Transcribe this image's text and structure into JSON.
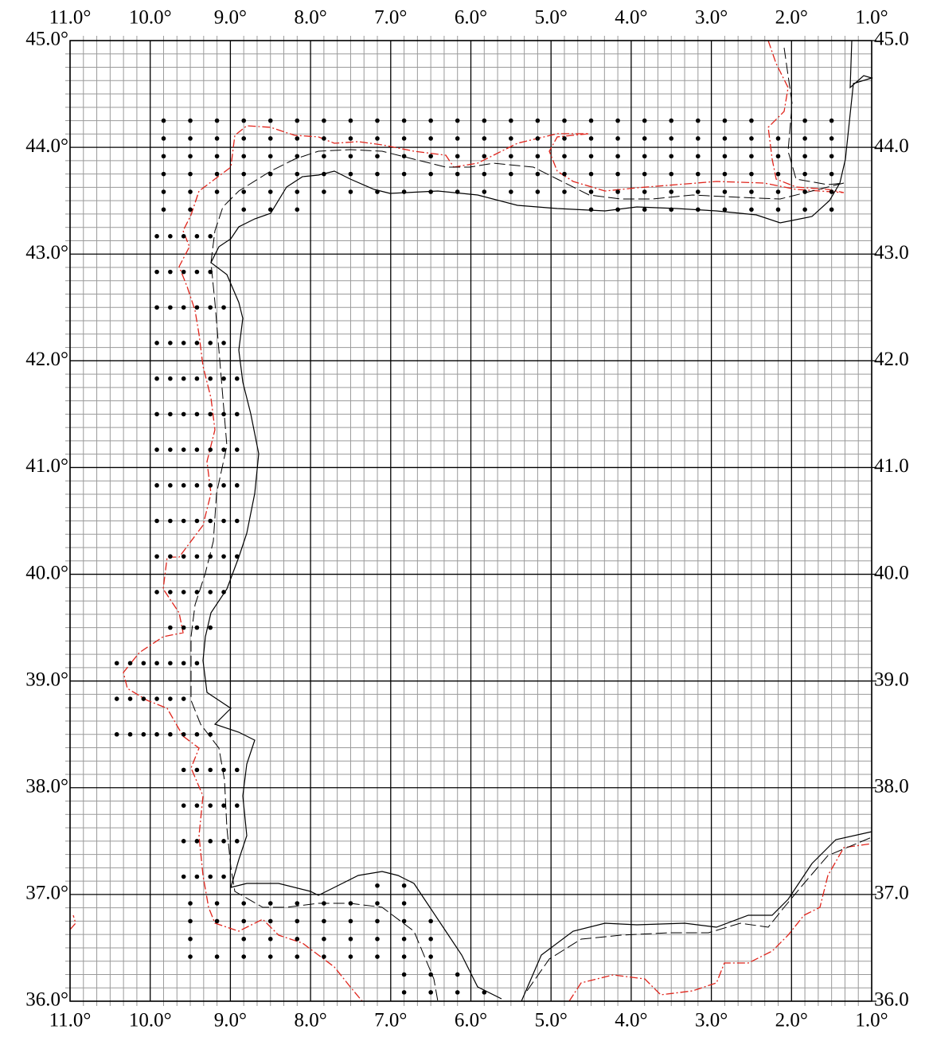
{
  "map": {
    "xlim": [
      11,
      1
    ],
    "ylim": [
      36,
      45
    ],
    "xticks": [
      {
        "value": 11,
        "label": "11.0°"
      },
      {
        "value": 10,
        "label": "10.0°"
      },
      {
        "value": 9,
        "label": "9.0°"
      },
      {
        "value": 8,
        "label": "8.0°"
      },
      {
        "value": 7,
        "label": "7.0°"
      },
      {
        "value": 6,
        "label": "6.0°"
      },
      {
        "value": 5,
        "label": "5.0°"
      },
      {
        "value": 4,
        "label": "4.0°"
      },
      {
        "value": 3,
        "label": "3.0°"
      },
      {
        "value": 2,
        "label": "2.0°"
      },
      {
        "value": 1,
        "label": "1.0°"
      }
    ],
    "yticks": [
      {
        "value": 45,
        "label": "45.0°"
      },
      {
        "value": 44,
        "label": "44.0°"
      },
      {
        "value": 43,
        "label": "43.0°"
      },
      {
        "value": 42,
        "label": "42.0°"
      },
      {
        "value": 41,
        "label": "41.0°"
      },
      {
        "value": 40,
        "label": "40.0°"
      },
      {
        "value": 39,
        "label": "39.0°"
      },
      {
        "value": 38,
        "label": "38.0°"
      },
      {
        "value": 37,
        "label": "37.0°"
      },
      {
        "value": 36,
        "label": "36.0°"
      }
    ],
    "y2ticks": [
      {
        "value": 45,
        "label": "45.0"
      },
      {
        "value": 44,
        "label": "44.0"
      },
      {
        "value": 43,
        "label": "43.0"
      },
      {
        "value": 42,
        "label": "42.0"
      },
      {
        "value": 41,
        "label": "41.0"
      },
      {
        "value": 40,
        "label": "40.0"
      },
      {
        "value": 39,
        "label": "39.0"
      },
      {
        "value": 38,
        "label": "38.0"
      },
      {
        "value": 37,
        "label": "37.0"
      },
      {
        "value": 36,
        "label": "36.0"
      }
    ],
    "minor_per_degree": {
      "lon": 6,
      "lat": 8
    },
    "stations": [
      {
        "lat": 44.25,
        "lon": [
          9.833,
          9.5,
          9.167,
          8.833,
          8.5,
          8.167,
          7.833,
          7.5,
          7.167,
          6.833,
          6.5,
          6.167,
          5.833,
          5.5,
          5.167,
          4.833,
          4.5,
          4.167,
          3.833,
          3.5,
          3.167,
          2.833,
          2.5,
          1.833,
          1.5
        ]
      },
      {
        "lat": 44.083,
        "lon": [
          9.833,
          9.5,
          9.167,
          8.833,
          8.5,
          8.167,
          7.833,
          7.5,
          7.167,
          6.833,
          6.5,
          6.167,
          5.833,
          5.5,
          5.167,
          4.833,
          4.5,
          4.167,
          3.833,
          3.5,
          3.167,
          2.833,
          2.5,
          2.167,
          1.833,
          1.5
        ]
      },
      {
        "lat": 43.917,
        "lon": [
          9.833,
          9.5,
          9.167,
          8.833,
          8.5,
          8.167,
          7.833,
          7.5,
          7.167,
          6.833,
          6.5,
          6.167,
          5.833,
          5.5,
          5.167,
          4.833,
          4.5,
          4.167,
          3.833,
          3.5,
          3.167,
          2.833,
          2.5,
          2.167,
          1.833,
          1.5
        ]
      },
      {
        "lat": 43.75,
        "lon": [
          9.833,
          9.5,
          9.167,
          8.833,
          8.5,
          8.167,
          7.833,
          7.5,
          7.167,
          6.833,
          6.5,
          6.167,
          5.833,
          5.5,
          5.167,
          4.833,
          4.5,
          4.167,
          3.833,
          3.5,
          3.167,
          2.833,
          2.5,
          2.167,
          1.833,
          1.5
        ]
      },
      {
        "lat": 43.583,
        "lon": [
          9.833,
          9.5,
          9.167,
          8.833,
          8.5,
          8.167,
          7.833,
          7.5,
          7.167,
          6.833,
          6.5,
          6.167,
          5.833,
          5.5,
          5.167,
          4.833,
          4.5,
          4.167,
          3.833,
          3.5,
          3.167,
          2.833,
          2.5,
          2.167,
          1.833,
          1.5
        ]
      },
      {
        "lat": 43.417,
        "lon": [
          9.833,
          9.5,
          8.833,
          8.5,
          8.167,
          4.5,
          4.167,
          3.833,
          3.5,
          3.167,
          2.833,
          2.5,
          2.167,
          1.833,
          1.5
        ]
      },
      {
        "lat": 43.167,
        "lon": [
          9.917,
          9.75,
          9.583,
          9.417,
          9.25
        ]
      },
      {
        "lat": 42.833,
        "lon": [
          9.917,
          9.75,
          9.583,
          9.417,
          9.25
        ]
      },
      {
        "lat": 42.5,
        "lon": [
          9.917,
          9.75,
          9.583,
          9.417,
          9.25,
          9.083
        ]
      },
      {
        "lat": 42.167,
        "lon": [
          9.917,
          9.75,
          9.583,
          9.417,
          9.25,
          9.083
        ]
      },
      {
        "lat": 41.833,
        "lon": [
          9.917,
          9.75,
          9.583,
          9.417,
          9.25,
          9.083,
          8.917
        ]
      },
      {
        "lat": 41.5,
        "lon": [
          9.917,
          9.75,
          9.583,
          9.417,
          9.25,
          9.083,
          8.917
        ]
      },
      {
        "lat": 41.167,
        "lon": [
          9.917,
          9.75,
          9.583,
          9.417,
          9.25,
          9.083,
          8.917
        ]
      },
      {
        "lat": 40.833,
        "lon": [
          9.917,
          9.75,
          9.583,
          9.417,
          9.25,
          9.083,
          8.917
        ]
      },
      {
        "lat": 40.5,
        "lon": [
          9.917,
          9.75,
          9.583,
          9.417,
          9.25,
          9.083,
          8.917
        ]
      },
      {
        "lat": 40.167,
        "lon": [
          9.917,
          9.75,
          9.583,
          9.417,
          9.25,
          9.083,
          8.917
        ]
      },
      {
        "lat": 39.833,
        "lon": [
          9.917,
          9.75,
          9.583,
          9.417,
          9.25,
          9.083
        ]
      },
      {
        "lat": 39.5,
        "lon": [
          9.75,
          9.583,
          9.417,
          9.25
        ]
      },
      {
        "lat": 39.167,
        "lon": [
          10.417,
          10.25,
          10.083,
          9.917,
          9.75,
          9.583,
          9.417
        ]
      },
      {
        "lat": 38.833,
        "lon": [
          10.417,
          10.25,
          10.083,
          9.917,
          9.75,
          9.583
        ]
      },
      {
        "lat": 38.5,
        "lon": [
          10.417,
          10.25,
          10.083,
          9.917,
          9.75,
          9.583,
          9.417,
          9.25
        ]
      },
      {
        "lat": 38.167,
        "lon": [
          9.583,
          9.417,
          9.25,
          9.083,
          8.917
        ]
      },
      {
        "lat": 37.833,
        "lon": [
          9.583,
          9.417,
          9.25,
          9.083,
          8.917
        ]
      },
      {
        "lat": 37.5,
        "lon": [
          9.583,
          9.417,
          9.25,
          9.083,
          8.917
        ]
      },
      {
        "lat": 37.167,
        "lon": [
          9.583,
          9.417,
          9.25,
          9.083
        ]
      },
      {
        "lat": 37.083,
        "lon": [
          7.167,
          6.833
        ]
      },
      {
        "lat": 36.917,
        "lon": [
          9.5,
          9.167,
          8.833,
          8.5,
          8.167,
          7.833,
          7.5,
          7.167,
          6.833
        ]
      },
      {
        "lat": 36.75,
        "lon": [
          9.5,
          9.167,
          8.833,
          8.5,
          8.167,
          7.833,
          7.5,
          7.167,
          6.833,
          6.5
        ]
      },
      {
        "lat": 36.583,
        "lon": [
          9.5,
          8.833,
          8.5,
          8.167,
          7.833,
          7.5,
          7.167,
          6.833,
          6.5
        ]
      },
      {
        "lat": 36.417,
        "lon": [
          9.5,
          9.167,
          8.833,
          8.5,
          8.167,
          7.833,
          7.5,
          7.167,
          6.833,
          6.5
        ]
      },
      {
        "lat": 36.25,
        "lon": [
          6.833,
          6.5,
          6.167
        ]
      },
      {
        "lat": 36.083,
        "lon": [
          6.833,
          6.5,
          6.167,
          5.833
        ]
      }
    ]
  }
}
